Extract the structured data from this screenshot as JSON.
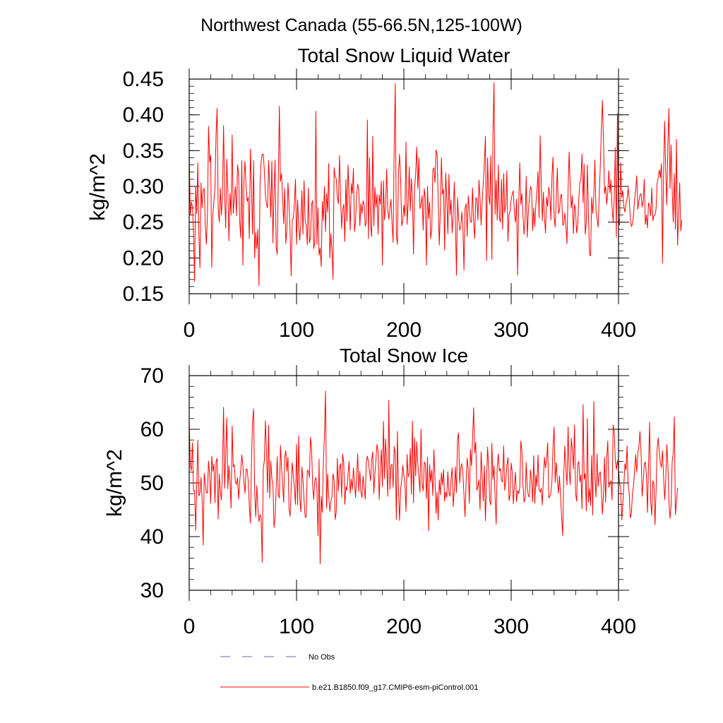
{
  "figure": {
    "title": "Northwest Canada (55-66.5N,125-100W)"
  },
  "colors": {
    "series": "#ff0000",
    "obs": "#6a6aa0",
    "axis": "#000000"
  },
  "legend": {
    "items": [
      {
        "label": "No Obs",
        "style": "dashed",
        "color": "#6a6aa0"
      },
      {
        "label": "b.e21.B1850.f09_g17.CMIP6-esm-piControl.001",
        "style": "solid",
        "color": "#ff0000"
      }
    ]
  },
  "chart_data": [
    {
      "type": "line",
      "title": "Total Snow Liquid Water",
      "xlabel": "",
      "ylabel": "kg/m^2",
      "xlim": [
        0,
        400
      ],
      "ylim": [
        0.15,
        0.45
      ],
      "xticks": [
        0,
        100,
        200,
        300,
        400
      ],
      "xtick_labels": [
        "0",
        "100",
        "200",
        "300",
        "400"
      ],
      "yticks": [
        0.15,
        0.2,
        0.25,
        0.3,
        0.35,
        0.4,
        0.45
      ],
      "ytick_labels": [
        "0.15",
        "0.20",
        "0.25",
        "0.30",
        "0.35",
        "0.40",
        "0.45"
      ],
      "series": [
        {
          "name": "b.e21.B1850.f09_g17.CMIP6-esm-piControl.001",
          "color": "#ff0000",
          "x_start": 0,
          "x_step": 1,
          "values": [
            0.347,
            0.26,
            0.278,
            0.272,
            0.235,
            0.167,
            0.3,
            0.262,
            0.333,
            0.233,
            0.186,
            0.305,
            0.27,
            0.296,
            0.297,
            0.245,
            0.219,
            0.262,
            0.384,
            0.334,
            0.344,
            0.187,
            0.26,
            0.28,
            0.298,
            0.373,
            0.409,
            0.27,
            0.25,
            0.297,
            0.26,
            0.288,
            0.385,
            0.29,
            0.242,
            0.338,
            0.296,
            0.224,
            0.29,
            0.26,
            0.372,
            0.262,
            0.284,
            0.3,
            0.259,
            0.33,
            0.318,
            0.252,
            0.228,
            0.336,
            0.19,
            0.31,
            0.335,
            0.298,
            0.279,
            0.285,
            0.227,
            0.352,
            0.299,
            0.233,
            0.336,
            0.2,
            0.236,
            0.213,
            0.24,
            0.161,
            0.304,
            0.335,
            0.345,
            0.345,
            0.322,
            0.288,
            0.275,
            0.27,
            0.336,
            0.3,
            0.257,
            0.335,
            0.221,
            0.29,
            0.337,
            0.215,
            0.205,
            0.308,
            0.412,
            0.307,
            0.318,
            0.285,
            0.248,
            0.297,
            0.22,
            0.24,
            0.305,
            0.276,
            0.237,
            0.175,
            0.254,
            0.255,
            0.276,
            0.31,
            0.219,
            0.281,
            0.246,
            0.225,
            0.248,
            0.294,
            0.233,
            0.308,
            0.252,
            0.246,
            0.218,
            0.298,
            0.221,
            0.228,
            0.275,
            0.28,
            0.213,
            0.222,
            0.405,
            0.219,
            0.27,
            0.204,
            0.214,
            0.188,
            0.279,
            0.252,
            0.3,
            0.237,
            0.29,
            0.264,
            0.332,
            0.2,
            0.234,
            0.211,
            0.17,
            0.326,
            0.313,
            0.311,
            0.285,
            0.276,
            0.343,
            0.287,
            0.241,
            0.268,
            0.275,
            0.223,
            0.31,
            0.251,
            0.33,
            0.288,
            0.239,
            0.304,
            0.29,
            0.325,
            0.237,
            0.252,
            0.287,
            0.303,
            0.296,
            0.245,
            0.276,
            0.262,
            0.28,
            0.275,
            0.244,
            0.25,
            0.393,
            0.227,
            0.34,
            0.244,
            0.23,
            0.37,
            0.245,
            0.299,
            0.271,
            0.289,
            0.233,
            0.288,
            0.275,
            0.307,
            0.19,
            0.308,
            0.253,
            0.273,
            0.324,
            0.267,
            0.254,
            0.269,
            0.282,
            0.248,
            0.222,
            0.355,
            0.444,
            0.232,
            0.219,
            0.319,
            0.345,
            0.31,
            0.245,
            0.252,
            0.274,
            0.258,
            0.362,
            0.247,
            0.275,
            0.327,
            0.266,
            0.311,
            0.284,
            0.205,
            0.297,
            0.318,
            0.355,
            0.297,
            0.34,
            0.269,
            0.275,
            0.287,
            0.239,
            0.297,
            0.283,
            0.19,
            0.3,
            0.255,
            0.278,
            0.227,
            0.24,
            0.323,
            0.326,
            0.305,
            0.351,
            0.345,
            0.278,
            0.218,
            0.267,
            0.34,
            0.289,
            0.296,
            0.211,
            0.319,
            0.283,
            0.234,
            0.317,
            0.26,
            0.281,
            0.235,
            0.259,
            0.306,
            0.255,
            0.176,
            0.284,
            0.256,
            0.239,
            0.242,
            0.264,
            0.245,
            0.183,
            0.269,
            0.276,
            0.23,
            0.287,
            0.268,
            0.25,
            0.25,
            0.298,
            0.251,
            0.227,
            0.284,
            0.283,
            0.253,
            0.309,
            0.283,
            0.246,
            0.28,
            0.304,
            0.332,
            0.37,
            0.196,
            0.34,
            0.287,
            0.275,
            0.343,
            0.198,
            0.374,
            0.445,
            0.261,
            0.309,
            0.253,
            0.33,
            0.256,
            0.25,
            0.31,
            0.24,
            0.318,
            0.263,
            0.274,
            0.322,
            0.223,
            0.26,
            0.266,
            0.282,
            0.289,
            0.294,
            0.262,
            0.25,
            0.282,
            0.176,
            0.275,
            0.333,
            0.275,
            0.29,
            0.261,
            0.233,
            0.254,
            0.314,
            0.229,
            0.264,
            0.284,
            0.3,
            0.296,
            0.238,
            0.27,
            0.244,
            0.275,
            0.293,
            0.321,
            0.256,
            0.371,
            0.306,
            0.252,
            0.292,
            0.257,
            0.235,
            0.285,
            0.272,
            0.299,
            0.289,
            0.253,
            0.315,
            0.341,
            0.258,
            0.243,
            0.284,
            0.326,
            0.262,
            0.266,
            0.287,
            0.289,
            0.246,
            0.247,
            0.263,
            0.245,
            0.22,
            0.294,
            0.348,
            0.302,
            0.27,
            0.287,
            0.234,
            0.275,
            0.266,
            0.235,
            0.246,
            0.283,
            0.305,
            0.312,
            0.345,
            0.277,
            0.331,
            0.233,
            0.25,
            0.33,
            0.26,
            0.205,
            0.203,
            0.285,
            0.262,
            0.288,
            0.337,
            0.267,
            0.255,
            0.243,
            0.285,
            0.327,
            0.378,
            0.42,
            0.364,
            0.29,
            0.3,
            0.275,
            0.292,
            0.322,
            0.291,
            0.309,
            0.271,
            0.251,
            0.282,
            0.354,
            0.229,
            0.402,
            0.256,
            0.246,
            0.333,
            0.284,
            0.294,
            0.272,
            0.264,
            0.276,
            0.283,
            0.298,
            0.282,
            0.256,
            0.244,
            0.247,
            0.26,
            0.282,
            0.295,
            0.315,
            0.268,
            0.279,
            0.288,
            0.29,
            0.271,
            0.279,
            0.31,
            0.247,
            0.26,
            0.242,
            0.277,
            0.272,
            0.259,
            0.298,
            0.252,
            0.259,
            0.26,
            0.269,
            0.304,
            0.312,
            0.323,
            0.312,
            0.332,
            0.193,
            0.32,
            0.391,
            0.322,
            0.274,
            0.359,
            0.409,
            0.297,
            0.358,
            0.297,
            0.25,
            0.318,
            0.24,
            0.366,
            0.218,
            0.258,
            0.305,
            0.238,
            0.253
          ]
        }
      ]
    },
    {
      "type": "line",
      "title": "Total Snow Ice",
      "xlabel": "",
      "ylabel": "kg/m^2",
      "xlim": [
        0,
        400
      ],
      "ylim": [
        30,
        70
      ],
      "xticks": [
        0,
        100,
        200,
        300,
        400
      ],
      "xtick_labels": [
        "0",
        "100",
        "200",
        "300",
        "400"
      ],
      "yticks": [
        30,
        40,
        50,
        60,
        70
      ],
      "ytick_labels": [
        "30",
        "40",
        "50",
        "60",
        "70"
      ],
      "series": [
        {
          "name": "b.e21.B1850.f09_g17.CMIP6-esm-piControl.001",
          "color": "#ff0000",
          "x_start": 0,
          "x_step": 1,
          "values": [
            61.5,
            53.3,
            52.3,
            57.5,
            48.5,
            48.6,
            41.1,
            49.4,
            58.0,
            47.6,
            48.1,
            51.0,
            46.8,
            38.4,
            51.8,
            49.8,
            48.2,
            48.1,
            54.1,
            51.6,
            46.2,
            55.0,
            52.2,
            53.5,
            46.3,
            54.0,
            54.6,
            43.3,
            51.6,
            48.3,
            46.8,
            53.0,
            64.1,
            49.0,
            55.4,
            62.1,
            48.9,
            53.2,
            50.2,
            45.3,
            60.6,
            53.0,
            53.4,
            50.2,
            49.7,
            51.0,
            47.0,
            50.2,
            52.4,
            55.2,
            53.2,
            50.2,
            48.1,
            52.6,
            52.5,
            50.2,
            45.8,
            42.5,
            53.7,
            61.4,
            63.8,
            48.4,
            43.7,
            49.5,
            45.2,
            42.8,
            44.1,
            43.6,
            35.2,
            52.7,
            54.1,
            61.6,
            55.7,
            48.2,
            60.7,
            47.2,
            54.1,
            50.8,
            50.0,
            41.7,
            43.4,
            49.0,
            54.9,
            47.7,
            47.2,
            57.0,
            52.9,
            49.8,
            46.4,
            54.9,
            56.0,
            52.2,
            54.8,
            45.3,
            43.8,
            48.9,
            53.8,
            51.4,
            49.1,
            46.0,
            57.2,
            45.9,
            58.8,
            47.1,
            44.6,
            53.0,
            50.5,
            46.8,
            43.7,
            43.6,
            52.4,
            52.2,
            51.0,
            58.5,
            56.5,
            49.6,
            46.9,
            50.4,
            51.0,
            48.8,
            40.1,
            54.4,
            34.9,
            47.5,
            44.5,
            53.9,
            58.9,
            67.1,
            45.3,
            51.7,
            47.6,
            44.7,
            46.5,
            47.5,
            51.7,
            50.5,
            43.2,
            44.5,
            54.6,
            48.5,
            52.9,
            53.6,
            47.4,
            55.4,
            53.7,
            46.0,
            49.3,
            48.6,
            51.7,
            54.0,
            48.1,
            50.7,
            48.8,
            52.8,
            50.0,
            47.3,
            51.0,
            55.4,
            48.4,
            52.2,
            48.3,
            47.3,
            51.3,
            49.1,
            47.0,
            53.9,
            55.0,
            54.0,
            52.1,
            50.4,
            54.3,
            55.8,
            48.1,
            51.7,
            54.3,
            57.2,
            55.8,
            46.9,
            52.2,
            56.2,
            49.3,
            61.5,
            50.8,
            58.2,
            53.2,
            47.5,
            65.4,
            48.8,
            53.2,
            53.5,
            49.2,
            56.8,
            55.6,
            43.2,
            59.6,
            48.6,
            43.0,
            48.9,
            50.4,
            53.3,
            51.4,
            49.7,
            44.7,
            55.3,
            51.1,
            51.8,
            56.4,
            47.9,
            61.5,
            46.3,
            58.4,
            51.3,
            57.7,
            53.6,
            51.4,
            48.3,
            60.0,
            50.0,
            48.5,
            53.9,
            53.6,
            47.1,
            54.8,
            41.1,
            53.4,
            50.2,
            52.4,
            47.6,
            56.2,
            50.9,
            44.3,
            48.3,
            43.1,
            50.6,
            47.8,
            51.9,
            49.6,
            52.5,
            46.6,
            48.3,
            47.3,
            52.1,
            48.2,
            47.5,
            50.7,
            52.8,
            45.6,
            48.7,
            53.0,
            48.2,
            58.2,
            59.3,
            50.0,
            52.9,
            53.6,
            51.8,
            47.8,
            43.7,
            50.2,
            54.6,
            52.6,
            46.2,
            56.3,
            53.2,
            58.0,
            64.0,
            55.6,
            57.6,
            48.6,
            49.3,
            50.6,
            45.0,
            55.8,
            51.3,
            46.6,
            53.2,
            43.0,
            49.9,
            56.7,
            52.9,
            46.7,
            45.9,
            57.4,
            50.7,
            53.2,
            47.5,
            42.3,
            52.9,
            55.4,
            52.2,
            52.7,
            50.4,
            50.2,
            56.9,
            48.6,
            50.4,
            53.4,
            54.7,
            46.7,
            47.8,
            53.7,
            52.0,
            46.1,
            49.5,
            52.0,
            46.5,
            48.6,
            48.0,
            49.1,
            57.8,
            56.0,
            49.8,
            46.4,
            47.2,
            53.8,
            49.0,
            47.6,
            47.4,
            52.4,
            50.4,
            46.5,
            55.1,
            46.2,
            51.5,
            49.3,
            55.2,
            48.7,
            48.3,
            49.0,
            45.9,
            50.8,
            54.8,
            52.8,
            54.2,
            57.5,
            47.2,
            47.5,
            48.2,
            50.4,
            56.8,
            60.4,
            50.1,
            53.8,
            50.6,
            48.1,
            51.3,
            47.6,
            43.5,
            40.2,
            51.5,
            56.9,
            52.6,
            49.6,
            60.5,
            52.3,
            49.7,
            58.3,
            56.1,
            52.6,
            60.8,
            48.1,
            46.6,
            53.5,
            54.0,
            50.2,
            51.5,
            45.2,
            64.6,
            50.7,
            51.8,
            44.8,
            62.0,
            46.4,
            48.9,
            45.8,
            55.1,
            44.0,
            65.2,
            51.0,
            47.4,
            55.4,
            49.3,
            51.6,
            52.1,
            48.7,
            44.2,
            47.8,
            54.8,
            46.4,
            54.5,
            57.8,
            49.2,
            49.9,
            50.4,
            46.8,
            60.8,
            59.7,
            54.2,
            52.5,
            54.2,
            52.6,
            50.1,
            48.9,
            43.1,
            46.0,
            49.7,
            53.6,
            52.4,
            56.9,
            49.7,
            48.0,
            43.5,
            44.3,
            48.0,
            49.4,
            52.3,
            55.3,
            52.0,
            55.5,
            56.8,
            59.6,
            55.8,
            47.5,
            50.0,
            53.5,
            53.9,
            51.6,
            44.5,
            53.6,
            61.3,
            46.5,
            44.0,
            50.4,
            49.9,
            42.2,
            48.6,
            56.4,
            58.4,
            55.9,
            53.7,
            52.9,
            56.0,
            51.2,
            46.9,
            50.4,
            57.2,
            53.3,
            46.6,
            43.4,
            45.7,
            54.0,
            55.5,
            62.3,
            44.1,
            46.4,
            49.1
          ]
        }
      ]
    }
  ]
}
